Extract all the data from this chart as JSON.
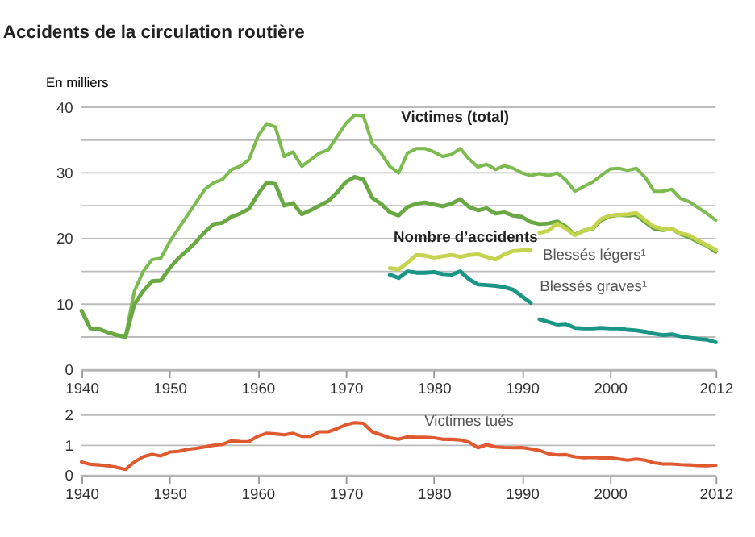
{
  "chart_data": [
    {
      "type": "line",
      "title": "Accidents de la circulation routière",
      "ylabel": "En milliers",
      "x": [
        1940,
        1941,
        1942,
        1943,
        1944,
        1945,
        1946,
        1947,
        1948,
        1949,
        1950,
        1951,
        1952,
        1953,
        1954,
        1955,
        1956,
        1957,
        1958,
        1959,
        1960,
        1961,
        1962,
        1963,
        1964,
        1965,
        1966,
        1967,
        1968,
        1969,
        1970,
        1971,
        1972,
        1973,
        1974,
        1975,
        1976,
        1977,
        1978,
        1979,
        1980,
        1981,
        1982,
        1983,
        1984,
        1985,
        1986,
        1987,
        1988,
        1989,
        1990,
        1991,
        1992,
        1993,
        1994,
        1995,
        1996,
        1997,
        1998,
        1999,
        2000,
        2001,
        2002,
        2003,
        2004,
        2005,
        2006,
        2007,
        2008,
        2009,
        2010,
        2011,
        2012
      ],
      "xlim": [
        1940,
        2012
      ],
      "xticks": [
        1940,
        1950,
        1960,
        1970,
        1980,
        1990,
        2000,
        2012
      ],
      "ylim": [
        0,
        40
      ],
      "yticks": [
        0,
        {
          "value": 5,
          "label": null
        },
        10,
        {
          "value": 15,
          "label": null
        },
        20,
        {
          "value": 25,
          "label": null
        },
        30,
        {
          "value": 35,
          "label": null
        },
        40
      ],
      "grid": "y",
      "line_style": "solid",
      "marker": "none",
      "series": [
        {
          "name": "Victimes (total)",
          "color": "#7dbb50",
          "values": [
            9,
            6.3,
            6.2,
            5.7,
            5.3,
            5.2,
            12,
            15,
            16.8,
            17,
            19.5,
            21.5,
            23.5,
            25.5,
            27.5,
            28.5,
            29,
            30.5,
            31,
            32,
            35.5,
            37.5,
            37,
            32.5,
            33.2,
            31,
            32,
            33,
            33.5,
            35.5,
            37.5,
            38.8,
            38.7,
            34.5,
            33,
            31,
            30,
            33,
            33.7,
            33.7,
            33.2,
            32.5,
            32.8,
            33.7,
            32.1,
            30.9,
            31.3,
            30.5,
            31.1,
            30.7,
            30,
            29.6,
            29.9,
            29.6,
            30,
            28.9,
            27.2,
            27.9,
            28.6,
            29.6,
            30.6,
            30.7,
            30.4,
            30.7,
            29.3,
            27.2,
            27.2,
            27.5,
            26.1,
            25.6,
            24.7,
            23.8,
            22.8
          ]
        },
        {
          "name": "Nombre d’accidents",
          "color": "#6aa843",
          "values": [
            9,
            6.3,
            6.2,
            5.7,
            5.3,
            5,
            10,
            12,
            13.5,
            13.6,
            15.5,
            17,
            18.2,
            19.5,
            21,
            22.2,
            22.4,
            23.3,
            23.8,
            24.5,
            26.7,
            28.5,
            28.3,
            25,
            25.4,
            23.7,
            24.3,
            25,
            25.7,
            27,
            28.6,
            29.4,
            29,
            26.2,
            25.3,
            24,
            23.5,
            24.8,
            25.3,
            25.5,
            25.2,
            24.9,
            25.3,
            26,
            24.8,
            24.3,
            24.6,
            23.8,
            24,
            23.5,
            23.3,
            22.5,
            22.2,
            22.3,
            22.6,
            21.8,
            20.6,
            21.2,
            21.5,
            22.8,
            23.4,
            23.6,
            23.5,
            23.6,
            22.5,
            21.5,
            21.3,
            21.5,
            20.7,
            20.2,
            19.5,
            18.9,
            18
          ]
        },
        {
          "name": "Blessés légers¹",
          "color": "#c5d44e",
          "x": [
            1975,
            1976,
            1977,
            1978,
            1979,
            1980,
            1981,
            1982,
            1983,
            1984,
            1985,
            1986,
            1987,
            1988,
            1989,
            1990,
            1991
          ],
          "values": [
            15.5,
            15.3,
            16.3,
            17.5,
            17.4,
            17.1,
            17.3,
            17.5,
            17.2,
            17.5,
            17.6,
            17.2,
            16.8,
            17.6,
            18.1,
            18.2,
            18.2
          ]
        },
        {
          "color": "#c5d44e",
          "x": [
            1992,
            1993,
            1994,
            1995,
            1996,
            1997,
            1998,
            1999,
            2000,
            2001,
            2002,
            2003,
            2004,
            2005,
            2006,
            2007,
            2008,
            2009,
            2010,
            2011,
            2012
          ],
          "values": [
            20.9,
            21.2,
            22.3,
            21.5,
            20.5,
            21.2,
            21.6,
            23,
            23.5,
            23.6,
            23.7,
            23.9,
            22.8,
            21.8,
            21.5,
            21.5,
            20.8,
            20.5,
            19.7,
            19,
            18.3
          ]
        },
        {
          "name": "Blessés graves¹",
          "color": "#1b9585",
          "x": [
            1975,
            1976,
            1977,
            1978,
            1979,
            1980,
            1981,
            1982,
            1983,
            1984,
            1985,
            1986,
            1987,
            1988,
            1989,
            1990,
            1991
          ],
          "values": [
            14.5,
            14,
            15,
            14.8,
            14.8,
            14.9,
            14.6,
            14.5,
            15,
            13.8,
            13,
            12.9,
            12.8,
            12.6,
            12.2,
            11.2,
            10.2
          ]
        },
        {
          "color": "#1b9585",
          "x": [
            1992,
            1993,
            1994,
            1995,
            1996,
            1997,
            1998,
            1999,
            2000,
            2001,
            2002,
            2003,
            2004,
            2005,
            2006,
            2007,
            2008,
            2009,
            2010,
            2011,
            2012
          ],
          "values": [
            7.7,
            7.3,
            6.9,
            7,
            6.4,
            6.3,
            6.3,
            6.4,
            6.3,
            6.3,
            6.1,
            6,
            5.8,
            5.5,
            5.3,
            5.4,
            5.1,
            4.9,
            4.7,
            4.6,
            4.2
          ]
        }
      ]
    },
    {
      "type": "line",
      "x": [
        1940,
        1941,
        1942,
        1943,
        1944,
        1945,
        1946,
        1947,
        1948,
        1949,
        1950,
        1951,
        1952,
        1953,
        1954,
        1955,
        1956,
        1957,
        1958,
        1959,
        1960,
        1961,
        1962,
        1963,
        1964,
        1965,
        1966,
        1967,
        1968,
        1969,
        1970,
        1971,
        1972,
        1973,
        1974,
        1975,
        1976,
        1977,
        1978,
        1979,
        1980,
        1981,
        1982,
        1983,
        1984,
        1985,
        1986,
        1987,
        1988,
        1989,
        1990,
        1991,
        1992,
        1993,
        1994,
        1995,
        1996,
        1997,
        1998,
        1999,
        2000,
        2001,
        2002,
        2003,
        2004,
        2005,
        2006,
        2007,
        2008,
        2009,
        2010,
        2011,
        2012
      ],
      "xlim": [
        1940,
        2012
      ],
      "xticks": [
        1940,
        1950,
        1960,
        1970,
        1980,
        1990,
        2000,
        2012
      ],
      "ylim": [
        0,
        2
      ],
      "yticks": [
        0,
        1,
        2
      ],
      "grid": "y",
      "line_style": "solid",
      "marker": "none",
      "series": [
        {
          "name": "Victimes tués",
          "color": "#e05a30",
          "values": [
            0.45,
            0.37,
            0.35,
            0.32,
            0.27,
            0.2,
            0.45,
            0.62,
            0.7,
            0.65,
            0.78,
            0.8,
            0.87,
            0.9,
            0.95,
            1.0,
            1.03,
            1.15,
            1.13,
            1.12,
            1.3,
            1.4,
            1.38,
            1.35,
            1.4,
            1.3,
            1.3,
            1.45,
            1.45,
            1.55,
            1.68,
            1.75,
            1.73,
            1.45,
            1.35,
            1.25,
            1.2,
            1.28,
            1.27,
            1.27,
            1.25,
            1.2,
            1.2,
            1.18,
            1.1,
            0.92,
            1.02,
            0.95,
            0.93,
            0.92,
            0.93,
            0.88,
            0.83,
            0.72,
            0.68,
            0.69,
            0.62,
            0.59,
            0.6,
            0.58,
            0.59,
            0.55,
            0.51,
            0.55,
            0.51,
            0.42,
            0.38,
            0.38,
            0.36,
            0.35,
            0.33,
            0.32,
            0.34
          ]
        }
      ]
    }
  ]
}
